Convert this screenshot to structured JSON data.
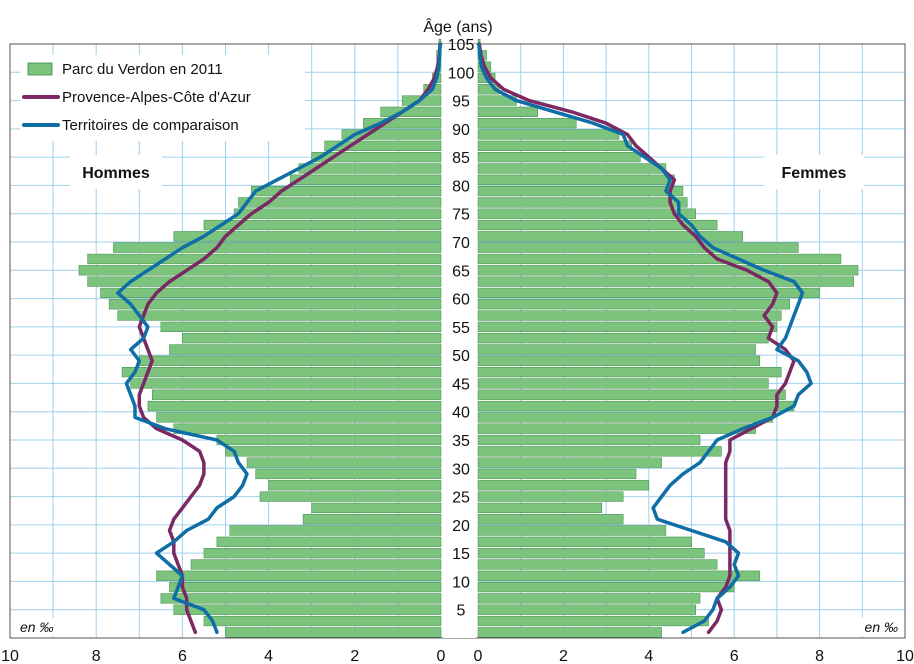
{
  "chart_data": {
    "type": "bar",
    "orientation": "horizontal",
    "title": "",
    "ylabel": "Âge (ans)",
    "unit_label": "en ‰",
    "side_labels": {
      "left": "Hommes",
      "right": "Femmes"
    },
    "age_ticks": [
      5,
      10,
      15,
      20,
      25,
      30,
      35,
      40,
      45,
      50,
      55,
      60,
      65,
      70,
      75,
      80,
      85,
      90,
      95,
      100,
      105
    ],
    "x_ticks_left": [
      10,
      8,
      6,
      4,
      2,
      0
    ],
    "x_ticks_right": [
      0,
      2,
      4,
      6,
      8,
      10
    ],
    "xlim": [
      0,
      10
    ],
    "ylim": [
      0,
      105
    ],
    "grid": true,
    "legend_position": "top-left",
    "legend": [
      {
        "label": "Parc du Verdon en 2011",
        "color": "#7cc47e",
        "marker": "bar"
      },
      {
        "label": "Provence-Alpes-Côte d'Azur",
        "color": "#7b2863",
        "marker": "line"
      },
      {
        "label": "Territoires de comparaison",
        "color": "#0e6ea5",
        "marker": "line"
      }
    ],
    "colors": {
      "bar_fill": "#7cc47e",
      "bar_edge": "#3d8a45",
      "paca": "#7b2863",
      "comparison": "#0e6ea5",
      "grid": "#9fd0ec"
    },
    "ages": [
      0,
      2,
      4,
      6,
      8,
      10,
      12,
      14,
      16,
      18,
      20,
      22,
      24,
      26,
      28,
      30,
      32,
      34,
      36,
      38,
      40,
      42,
      44,
      46,
      48,
      50,
      52,
      54,
      56,
      58,
      60,
      62,
      64,
      66,
      68,
      70,
      72,
      74,
      76,
      78,
      80,
      82,
      84,
      86,
      88,
      90,
      92,
      94,
      96,
      98,
      100,
      102,
      104
    ],
    "series": [
      {
        "name": "Parc du Verdon en 2011 — Hommes",
        "side": "left",
        "values": [
          5.0,
          5.5,
          6.2,
          6.5,
          6.3,
          6.6,
          5.8,
          5.5,
          5.2,
          4.9,
          3.2,
          3.0,
          4.2,
          4.0,
          4.3,
          4.5,
          5.0,
          5.2,
          6.2,
          6.6,
          6.8,
          6.7,
          7.2,
          7.4,
          7.0,
          6.3,
          6.0,
          6.5,
          7.5,
          7.7,
          7.9,
          8.2,
          8.4,
          8.2,
          7.6,
          6.2,
          5.5,
          4.8,
          4.7,
          4.4,
          3.5,
          3.3,
          3.0,
          2.7,
          2.3,
          1.8,
          1.4,
          0.9,
          0.4,
          0.2,
          0.1,
          0.1,
          0.05
        ]
      },
      {
        "name": "Parc du Verdon en 2011 — Femmes",
        "side": "right",
        "values": [
          4.3,
          5.4,
          5.1,
          5.2,
          6.0,
          6.6,
          5.6,
          5.3,
          5.0,
          4.4,
          3.4,
          2.9,
          3.4,
          4.0,
          3.7,
          4.3,
          5.7,
          5.2,
          6.5,
          6.9,
          7.4,
          7.2,
          6.8,
          7.1,
          6.6,
          6.5,
          6.8,
          7.0,
          7.1,
          7.3,
          8.0,
          8.8,
          8.9,
          8.5,
          7.5,
          6.2,
          5.6,
          5.1,
          4.9,
          4.8,
          4.6,
          4.4,
          3.8,
          3.6,
          3.3,
          2.3,
          1.4,
          0.9,
          0.5,
          0.4,
          0.3,
          0.2,
          0.05
        ]
      },
      {
        "name": "Provence-Alpes-Côte d'Azur — Hommes",
        "side": "left",
        "values": [
          5.7,
          5.8,
          5.9,
          5.9,
          6.0,
          6.0,
          6.1,
          6.2,
          6.2,
          6.3,
          6.2,
          6.0,
          5.8,
          5.6,
          5.5,
          5.5,
          5.6,
          6.0,
          6.6,
          6.9,
          7.0,
          7.0,
          6.9,
          6.8,
          6.7,
          6.8,
          6.9,
          7.0,
          6.9,
          6.8,
          6.6,
          6.3,
          5.9,
          5.5,
          5.2,
          5.0,
          4.7,
          4.4,
          4.0,
          3.7,
          3.3,
          2.9,
          2.5,
          2.1,
          1.7,
          1.3,
          0.9,
          0.5,
          0.3,
          0.15,
          0.08,
          0.04,
          0.02
        ]
      },
      {
        "name": "Provence-Alpes-Côte d'Azur — Femmes",
        "side": "right",
        "values": [
          5.4,
          5.6,
          5.7,
          5.6,
          5.8,
          5.9,
          5.9,
          5.9,
          5.9,
          5.9,
          5.8,
          5.8,
          5.8,
          5.8,
          5.8,
          5.8,
          5.9,
          5.9,
          6.4,
          6.9,
          7.0,
          7.0,
          7.2,
          7.3,
          7.4,
          7.2,
          6.8,
          6.9,
          6.7,
          6.9,
          7.0,
          6.8,
          6.3,
          5.6,
          5.3,
          5.1,
          4.8,
          4.6,
          4.5,
          4.5,
          4.6,
          4.3,
          4.0,
          3.7,
          3.5,
          3.0,
          2.2,
          1.2,
          0.6,
          0.3,
          0.15,
          0.07,
          0.03
        ]
      },
      {
        "name": "Territoires de comparaison — Hommes",
        "side": "left",
        "values": [
          5.2,
          5.3,
          5.5,
          6.2,
          6.1,
          6.0,
          6.3,
          6.6,
          6.2,
          5.9,
          5.4,
          5.2,
          4.8,
          4.6,
          4.5,
          4.7,
          4.8,
          5.2,
          6.4,
          7.1,
          7.1,
          7.2,
          7.3,
          7.1,
          7.0,
          7.2,
          6.9,
          6.8,
          7.0,
          7.2,
          7.5,
          7.2,
          6.8,
          6.4,
          6.0,
          5.5,
          5.1,
          4.7,
          4.5,
          4.3,
          3.8,
          3.3,
          2.8,
          2.4,
          2.0,
          1.4,
          0.9,
          0.5,
          0.2,
          0.1,
          0.05,
          0.03,
          0.02
        ]
      },
      {
        "name": "Territoires de comparaison — Femmes",
        "side": "right",
        "values": [
          4.8,
          5.3,
          5.5,
          5.6,
          5.9,
          6.1,
          6.0,
          6.1,
          5.8,
          5.0,
          4.2,
          4.1,
          4.3,
          4.5,
          4.8,
          5.2,
          5.4,
          5.6,
          6.2,
          6.9,
          7.4,
          7.5,
          7.8,
          7.7,
          7.5,
          7.0,
          7.2,
          7.3,
          7.4,
          7.5,
          7.6,
          7.4,
          6.7,
          6.1,
          5.5,
          5.2,
          5.0,
          4.7,
          4.7,
          4.4,
          4.5,
          4.3,
          3.9,
          3.5,
          3.4,
          2.7,
          1.8,
          0.9,
          0.4,
          0.2,
          0.08,
          0.04,
          0.02
        ]
      }
    ]
  }
}
